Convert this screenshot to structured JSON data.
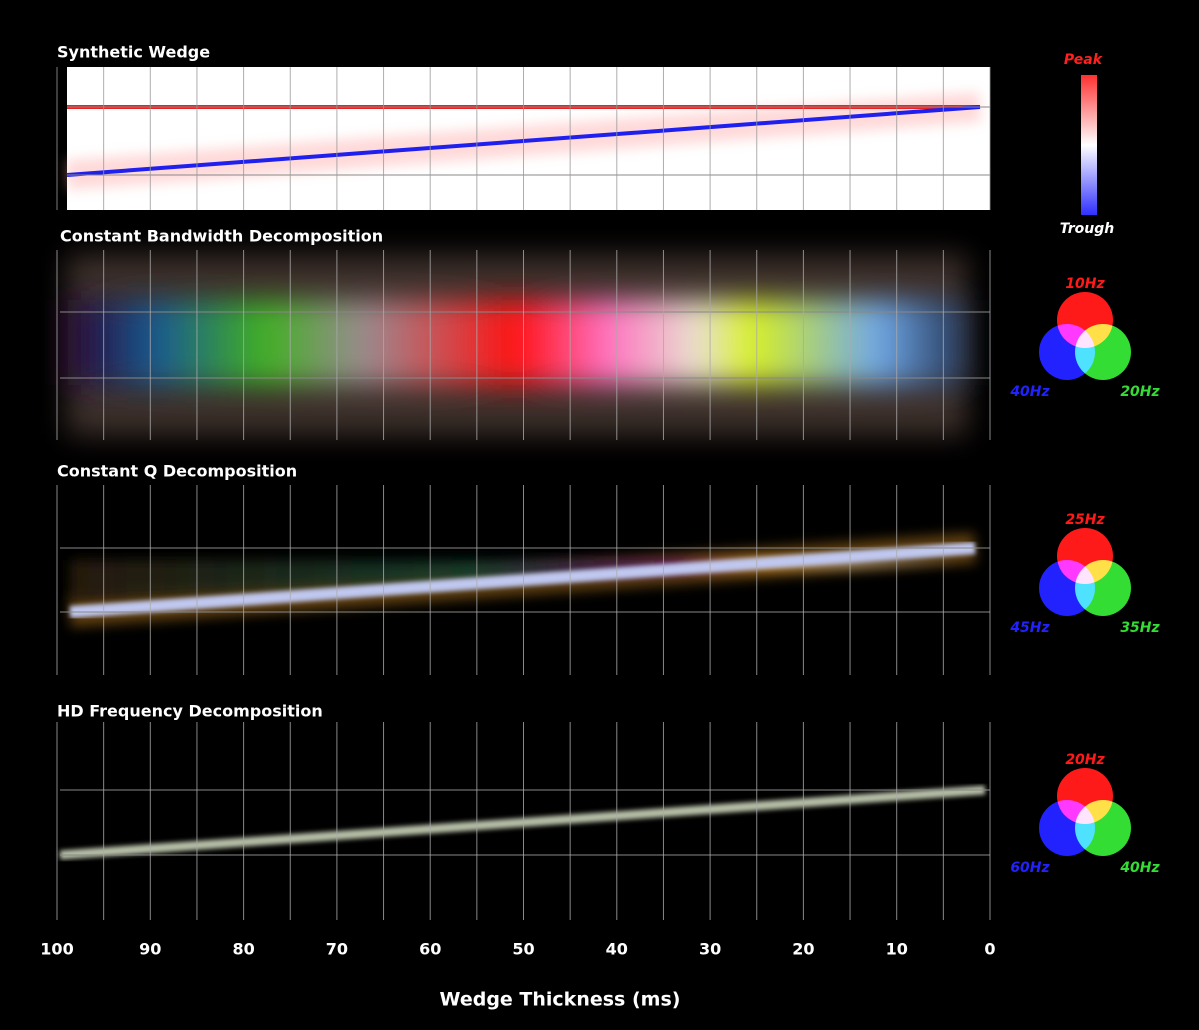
{
  "panels": [
    {
      "title": "Synthetic Wedge",
      "legend": [
        {
          "label": "Peak",
          "color": "#ff2020"
        },
        {
          "label": "Trough",
          "color": "#3030ff"
        }
      ]
    },
    {
      "title": "Constant Bandwidth Decomposition",
      "legend": [
        {
          "label": "10Hz",
          "color": "#ff1a1a"
        },
        {
          "label": "20Hz",
          "color": "#33dd33"
        },
        {
          "label": "40Hz",
          "color": "#2222ff"
        }
      ]
    },
    {
      "title": "Constant Q Decomposition",
      "legend": [
        {
          "label": "25Hz",
          "color": "#ff1a1a"
        },
        {
          "label": "35Hz",
          "color": "#33dd33"
        },
        {
          "label": "45Hz",
          "color": "#2222ff"
        }
      ]
    },
    {
      "title": "HD Frequency Decomposition",
      "legend": [
        {
          "label": "20Hz",
          "color": "#ff1a1a"
        },
        {
          "label": "40Hz",
          "color": "#33dd33"
        },
        {
          "label": "60Hz",
          "color": "#2222ff"
        }
      ]
    }
  ],
  "x_axis": {
    "label": "Wedge Thickness (ms)",
    "xlim": [
      100,
      0
    ],
    "xticks": [
      100,
      90,
      80,
      70,
      60,
      50,
      40,
      30,
      20,
      10,
      0
    ]
  }
}
